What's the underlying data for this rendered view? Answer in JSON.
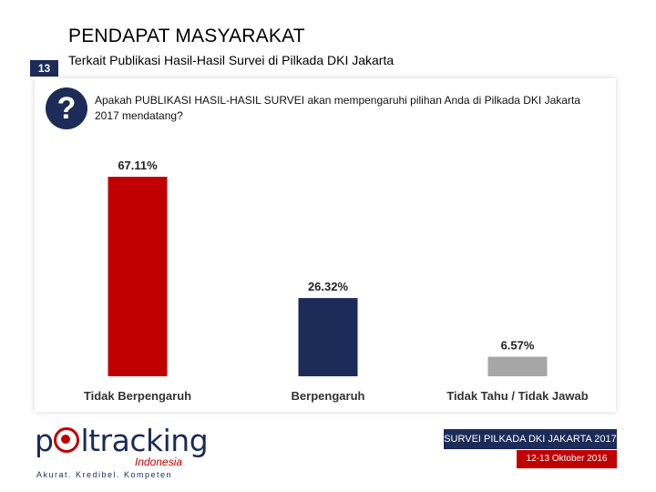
{
  "header": {
    "title": "PENDAPAT MASYARAKAT",
    "slide_number": "13",
    "subtitle": "Terkait Publikasi Hasil-Hasil Survei di Pilkada DKI Jakarta"
  },
  "question": {
    "icon": "question-mark-icon",
    "text": "Apakah PUBLIKASI HASIL-HASIL SURVEI akan mempengaruhi pilihan Anda di Pilkada DKI Jakarta 2017 mendatang?"
  },
  "chart_data": {
    "type": "bar",
    "categories": [
      "Tidak Berpengaruh",
      "Berpengaruh",
      "Tidak Tahu / Tidak Jawab"
    ],
    "values": [
      67.11,
      26.32,
      6.57
    ],
    "value_labels": [
      "67.11%",
      "26.32%",
      "6.57%"
    ],
    "colors": [
      "#c00000",
      "#1c2b57",
      "#a6a6a6"
    ],
    "ylim": [
      0,
      67.11
    ],
    "grid": false
  },
  "footer": {
    "logo_main_before": "p",
    "logo_main_after": "ltracking",
    "logo_sub": "Indonesia",
    "logo_tagline": "Akurat. Kredibel. Kompeten",
    "survey_label": "SURVEI PILKADA DKI JAKARTA 2017",
    "date_label": "12-13 Oktober 2016"
  }
}
